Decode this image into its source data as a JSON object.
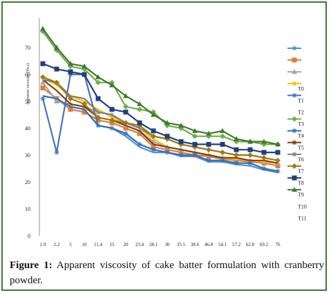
{
  "caption": {
    "label": "Figure 1:",
    "text": "Apparent viscosity of cake batter formulation with cranberry powder."
  },
  "chart_data": {
    "type": "line",
    "ylabel": "Apparent viscosity (Pa.s)",
    "ylim": [
      0,
      80
    ],
    "yticks": [
      "0",
      "10",
      "20",
      "30",
      "40",
      "50",
      "60",
      "70"
    ],
    "categories": [
      "1.9",
      "2.2",
      "5",
      "10",
      "11.4",
      "15",
      "20",
      "23.4",
      "28.1",
      "30",
      "35.5",
      "38.6",
      "46.8",
      "54.1",
      "57.2",
      "62.8",
      "69.2",
      "76"
    ],
    "grid": false,
    "legend_position": "right",
    "series": [
      {
        "color": "#4f8fd0",
        "marker": "none",
        "values": [
          52,
          51,
          48,
          47,
          41,
          40,
          37,
          33,
          31,
          31,
          29.5,
          29.5,
          27.5,
          27.5,
          26.5,
          26,
          24.5,
          23.5
        ]
      },
      {
        "color": "#e07b39",
        "marker": "square",
        "values": [
          55,
          51,
          47,
          46,
          43,
          42,
          40,
          38,
          33,
          32,
          31,
          30,
          29.5,
          28.5,
          28,
          27.5,
          27,
          26
        ]
      },
      {
        "color": "#a6a6a6",
        "marker": "triangle",
        "values": [
          57,
          50,
          49,
          48,
          46,
          45,
          41,
          39,
          35,
          33,
          32,
          31,
          30,
          29,
          28.5,
          28,
          27.5,
          27
        ]
      },
      {
        "name": "T0",
        "color": "#ffc000",
        "marker": "none",
        "values": [
          59,
          56,
          52,
          50,
          47,
          44,
          42,
          40,
          36,
          33,
          32,
          31,
          30,
          29,
          28.5,
          28,
          27.5,
          27
        ]
      },
      {
        "name": "T1",
        "color": "#4472c4",
        "marker": "star",
        "values": [
          51,
          31,
          60,
          60,
          41,
          40,
          38,
          34,
          32,
          31,
          30,
          30,
          28,
          28,
          27,
          27,
          25,
          24
        ]
      },
      {
        "name": "T3",
        "color": "#70ad47",
        "marker": "diamond",
        "values": [
          76,
          69,
          63,
          62,
          57,
          57,
          48,
          47,
          46,
          41,
          40,
          37,
          37,
          37,
          35,
          35,
          34,
          34
        ]
      },
      {
        "name": "T4",
        "color": "#2e75b6",
        "marker": "none",
        "values": [
          52,
          51,
          48,
          47,
          41,
          40,
          38,
          34,
          32,
          31,
          30,
          30,
          28,
          28,
          27,
          27,
          25,
          24
        ]
      },
      {
        "name": "T5",
        "color": "#843c0c",
        "marker": "none",
        "values": [
          58,
          54,
          49,
          48,
          44,
          43,
          41,
          39,
          34,
          33,
          32,
          31,
          30,
          29,
          29,
          28,
          28,
          27
        ]
      },
      {
        "name": "T6",
        "color": "#7f7f7f",
        "marker": "none",
        "values": [
          58,
          57,
          52,
          51,
          46,
          45,
          42,
          40,
          37,
          36,
          34,
          33,
          32,
          31,
          30,
          30,
          29,
          28
        ]
      },
      {
        "name": "T7",
        "color": "#9e7b12",
        "marker": "diamond",
        "values": [
          59,
          57,
          51,
          49,
          44,
          43,
          42,
          41,
          37,
          36,
          34,
          33,
          32,
          31,
          30,
          30,
          29,
          28
        ]
      },
      {
        "name": "T8",
        "color": "#203f80",
        "marker": "square",
        "values": [
          64,
          62,
          61,
          60,
          51,
          47,
          46,
          42,
          39,
          37,
          35,
          34,
          34,
          34,
          32,
          32,
          31,
          31
        ]
      },
      {
        "name": "T9",
        "color": "#3c7a2a",
        "marker": "triangle",
        "values": [
          77,
          70,
          64,
          63,
          59,
          56,
          52,
          49,
          45,
          42,
          41,
          39,
          38,
          39,
          36,
          35,
          35,
          34
        ]
      }
    ],
    "legend_extra": [
      "T2",
      "T10",
      "T11"
    ]
  }
}
